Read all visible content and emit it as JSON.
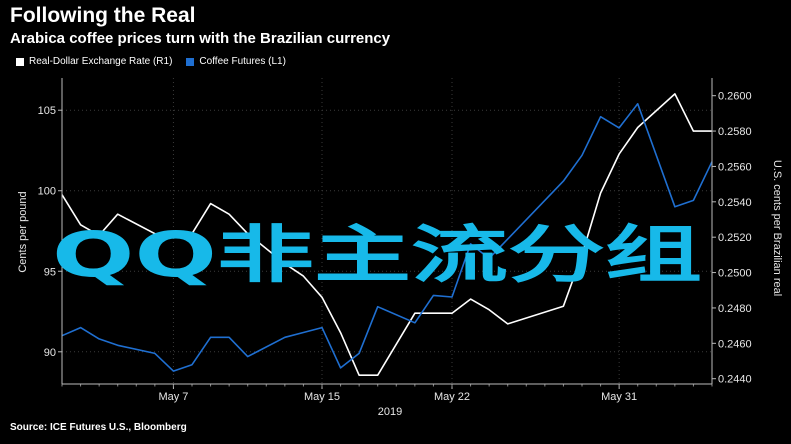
{
  "header": {
    "title": "Following the Real",
    "subtitle": "Arabica coffee prices turn with the Brazilian currency"
  },
  "footer": {
    "source": "Source: ICE Futures U.S., Bloomberg"
  },
  "overlay": {
    "text": "QQ非主流分组"
  },
  "colors": {
    "background": "#000000",
    "fx": "#ffffff",
    "coffee": "#1f6fd1",
    "grid": "#3a3a3a",
    "overlay": "#17b9e9"
  },
  "chart_data": {
    "type": "line",
    "x_ticks": [
      {
        "day": 7,
        "label": "May 7"
      },
      {
        "day": 15,
        "label": "May 15"
      },
      {
        "day": 22,
        "label": "May 22"
      },
      {
        "day": 31,
        "label": "May 31"
      }
    ],
    "x_year_label": "2019",
    "xlim": [
      1,
      36
    ],
    "left_axis": {
      "label": "Cents per pound",
      "ylim": [
        88,
        107
      ],
      "ticks": [
        90,
        95,
        100,
        105
      ]
    },
    "right_axis": {
      "label": "U.S. cents per Brazilian real",
      "ylim": [
        0.2437,
        0.261
      ],
      "ticks": [
        {
          "value": 0.244,
          "label": "0.2440"
        },
        {
          "value": 0.246,
          "label": "0.2460"
        },
        {
          "value": 0.248,
          "label": "0.2480"
        },
        {
          "value": 0.25,
          "label": "0.2500"
        },
        {
          "value": 0.252,
          "label": "0.2520"
        },
        {
          "value": 0.254,
          "label": "0.2540"
        },
        {
          "value": 0.256,
          "label": "0.2560"
        },
        {
          "value": 0.258,
          "label": "0.2580"
        },
        {
          "value": 0.26,
          "label": "0.2600"
        }
      ]
    },
    "legend": [
      {
        "name": "Real-Dollar Exchange Rate (R1)",
        "color": "#ffffff"
      },
      {
        "name": "Coffee Futures (L1)",
        "color": "#1f6fd1"
      }
    ],
    "series": [
      {
        "name": "Real-Dollar Exchange Rate (R1)",
        "axis": "right",
        "color": "#ffffff",
        "x": [
          1,
          2,
          3,
          4,
          6,
          7,
          8,
          9,
          10,
          11,
          13,
          14,
          15,
          16,
          17,
          18,
          20,
          21,
          22,
          23,
          24,
          25,
          28,
          29,
          30,
          31,
          32,
          34,
          35,
          36
        ],
        "y": [
          0.2544,
          0.2527,
          0.2521,
          0.2533,
          0.2522,
          0.2521,
          0.2522,
          0.2539,
          0.2533,
          0.2522,
          0.2505,
          0.2498,
          0.2486,
          0.2466,
          0.2442,
          0.2442,
          0.2477,
          0.2477,
          0.2477,
          0.2485,
          0.2479,
          0.2471,
          0.2481,
          0.251,
          0.2545,
          0.2567,
          0.2582,
          0.2601,
          0.258,
          0.258
        ]
      },
      {
        "name": "Coffee Futures (L1)",
        "axis": "left",
        "color": "#1f6fd1",
        "x": [
          1,
          2,
          3,
          4,
          6,
          7,
          8,
          9,
          10,
          11,
          13,
          14,
          15,
          16,
          17,
          18,
          20,
          21,
          22,
          23,
          24,
          25,
          28,
          29,
          30,
          31,
          32,
          34,
          35,
          36
        ],
        "y": [
          91.0,
          91.5,
          90.8,
          90.4,
          89.9,
          88.8,
          89.2,
          90.9,
          90.9,
          89.7,
          90.9,
          91.2,
          91.5,
          89.0,
          89.9,
          92.8,
          91.8,
          93.5,
          93.4,
          96.7,
          95.8,
          97.0,
          100.6,
          102.2,
          104.6,
          103.9,
          105.4,
          99.0,
          99.4,
          101.8
        ]
      }
    ]
  }
}
